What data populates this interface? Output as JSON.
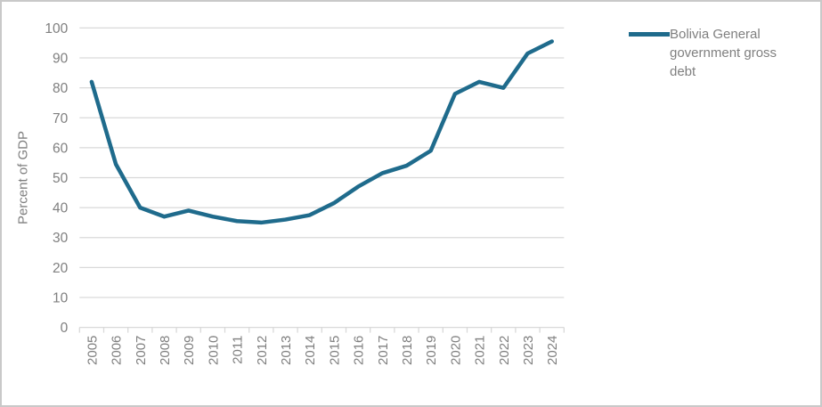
{
  "legend": {
    "label": "Bolivia General government gross debt"
  },
  "colors": {
    "line": "#1f6b8c",
    "grid": "#d9d9d9",
    "text": "#7f7f7f",
    "frame_border": "#c9c9c9"
  },
  "chart_data": {
    "type": "line",
    "title": "",
    "xlabel": "",
    "ylabel": "Percent of GDP",
    "ylim": [
      0,
      100
    ],
    "ytick_step": 10,
    "grid": "horizontal",
    "legend_position": "right",
    "x": [
      "2005",
      "2006",
      "2007",
      "2008",
      "2009",
      "2010",
      "2011",
      "2012",
      "2013",
      "2014",
      "2015",
      "2016",
      "2017",
      "2018",
      "2019",
      "2020",
      "2021",
      "2022",
      "2023",
      "2024"
    ],
    "series": [
      {
        "name": "Bolivia General government gross debt",
        "color": "#1f6b8c",
        "values": [
          82,
          54.5,
          40,
          37,
          39,
          37,
          35.5,
          35,
          36,
          37.5,
          41.5,
          47,
          51.5,
          54,
          59,
          78,
          82,
          80,
          91.5,
          95.5
        ]
      }
    ]
  }
}
